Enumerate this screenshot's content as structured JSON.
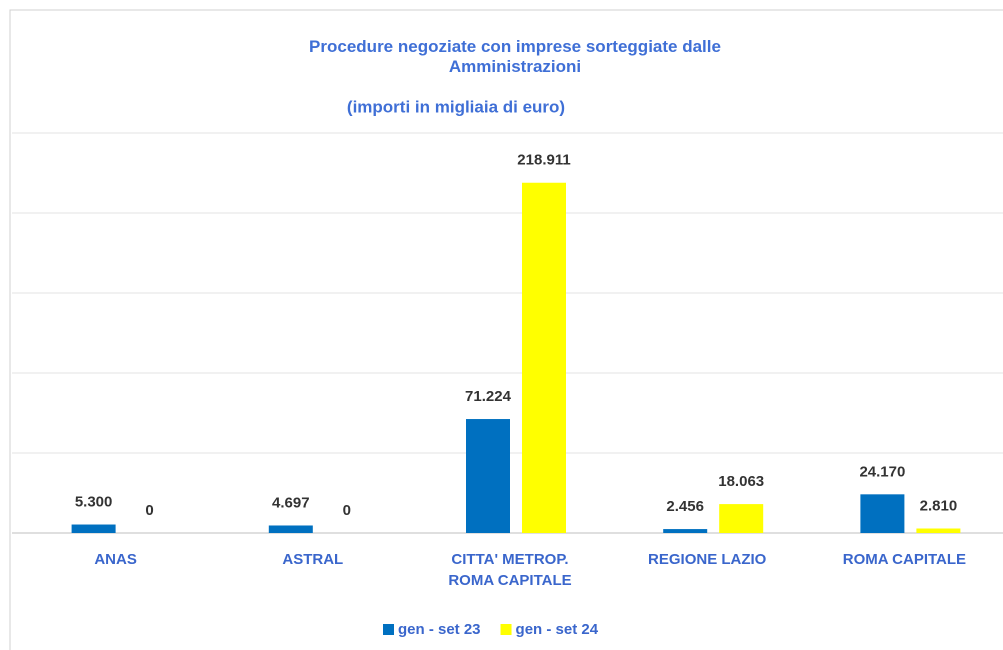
{
  "chart_data": {
    "type": "bar",
    "title": "Procedure negoziate con imprese sorteggiate dalle\nAmministrazioni",
    "subtitle": "(importi in migliaia di euro)",
    "categories": [
      "ANAS",
      "ASTRAL",
      "CITTA' METROP.\nROMA CAPITALE",
      "REGIONE LAZIO",
      "ROMA CAPITALE"
    ],
    "series": [
      {
        "name": "gen - set 23",
        "color": "#0070c0",
        "values": [
          5300,
          4697,
          71224,
          2456,
          24170
        ],
        "value_labels": [
          "5.300",
          "4.697",
          "71.224",
          "2.456",
          "24.170"
        ]
      },
      {
        "name": "gen - set 24",
        "color": "#ffff00",
        "values": [
          0,
          0,
          218911,
          18063,
          2810
        ],
        "value_labels": [
          "0",
          "0",
          "218.911",
          "18.063",
          "2.810"
        ]
      }
    ],
    "ylim": [
      0,
      250000
    ],
    "yticks": [
      0,
      50000,
      100000,
      150000,
      200000,
      250000
    ],
    "grid": true,
    "legend": "bottom"
  }
}
